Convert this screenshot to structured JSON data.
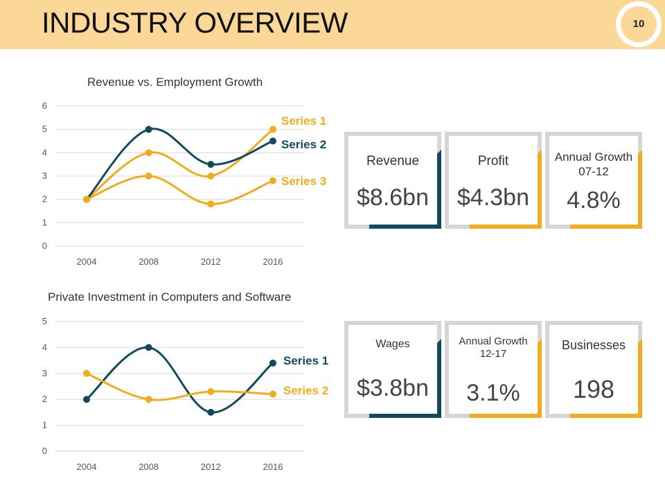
{
  "header": {
    "title": "INDUSTRY OVERVIEW",
    "page_number": "10"
  },
  "colors": {
    "header_bg": "#fbd897",
    "navy": "#114a5e",
    "gold": "#f0ac1c",
    "frame": "#d6d6d6"
  },
  "chart_data": [
    {
      "type": "line",
      "title": "Revenue vs. Employment Growth",
      "categories": [
        "2004",
        "2008",
        "2012",
        "2016"
      ],
      "yticks": [
        "0",
        "1",
        "2",
        "3",
        "4",
        "5",
        "6"
      ],
      "ylim": [
        0,
        6
      ],
      "grid": true,
      "legend": "inline-right",
      "series": [
        {
          "name": "Series 1",
          "values": [
            2,
            4,
            3,
            5
          ],
          "color": "#f0ac1c"
        },
        {
          "name": "Series 2",
          "values": [
            2,
            5,
            3.5,
            4.5
          ],
          "color": "#114a5e"
        },
        {
          "name": "Series 3",
          "values": [
            2,
            3,
            1.8,
            2.8
          ],
          "color": "#f0ac1c"
        }
      ]
    },
    {
      "type": "line",
      "title": "Private Investment in Computers and Software",
      "categories": [
        "2004",
        "2008",
        "2012",
        "2016"
      ],
      "yticks": [
        "0",
        "1",
        "2",
        "3",
        "4",
        "5"
      ],
      "ylim": [
        0,
        5
      ],
      "grid": true,
      "legend": "inline-right",
      "series": [
        {
          "name": "Series 1",
          "values": [
            2,
            4,
            1.5,
            3.4
          ],
          "color": "#114a5e"
        },
        {
          "name": "Series 2",
          "values": [
            3,
            2,
            2.3,
            2.2
          ],
          "color": "#f0ac1c"
        }
      ]
    }
  ],
  "stats": [
    {
      "label": "Revenue",
      "value": "$8.6bn",
      "accent": "#114a5e"
    },
    {
      "label": "Profit",
      "value": "$4.3bn",
      "accent": "#f0ac1c"
    },
    {
      "label": "Annual Growth 07-12",
      "value": "4.8%",
      "accent": "#f0ac1c"
    },
    {
      "label": "Wages",
      "value": "$3.8bn",
      "accent": "#114a5e"
    },
    {
      "label": "Annual Growth 12-17",
      "value": "3.1%",
      "accent": "#f0ac1c"
    },
    {
      "label": "Businesses",
      "value": "198",
      "accent": "#f0ac1c"
    }
  ]
}
